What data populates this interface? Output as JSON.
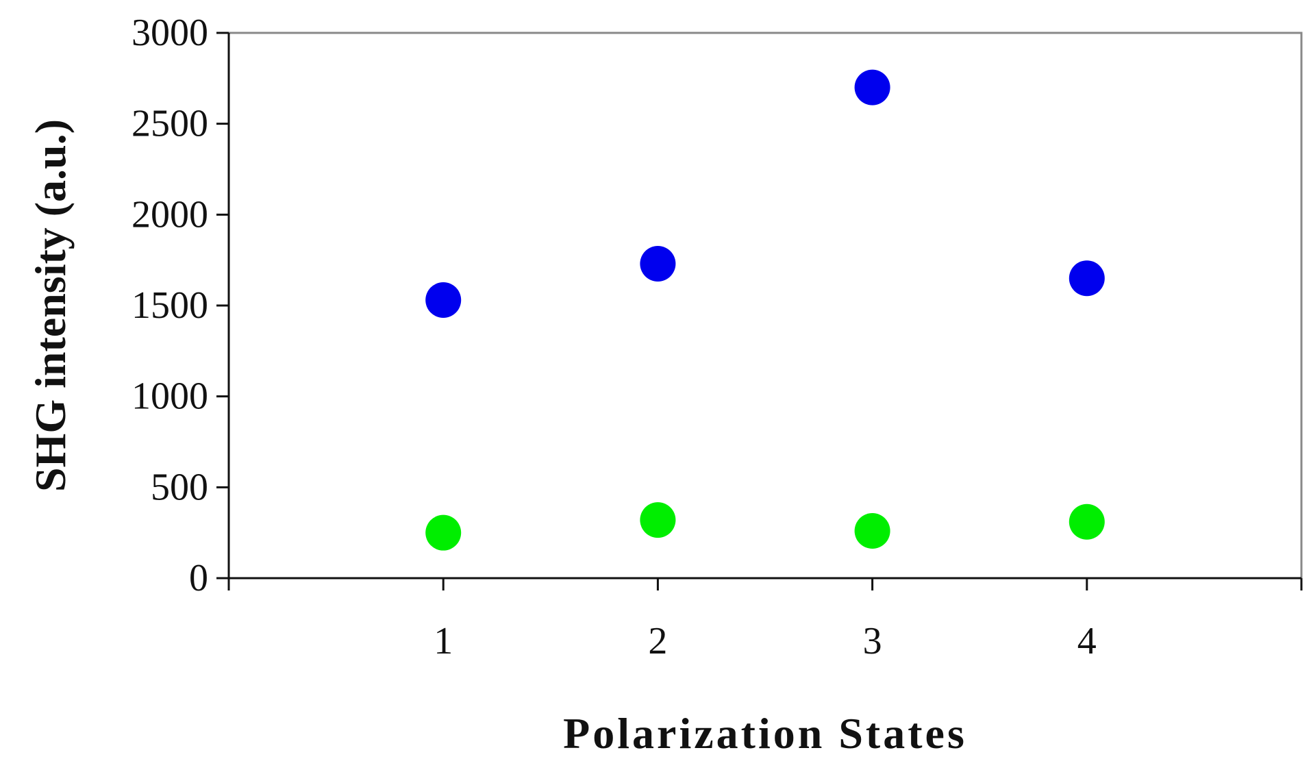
{
  "chart_data": {
    "type": "scatter",
    "title": "",
    "xlabel": "Polarization States",
    "ylabel": "SHG intensity (a.u.)",
    "xlim": [
      0,
      5
    ],
    "ylim": [
      0,
      3000
    ],
    "x_ticks": [
      1,
      2,
      3,
      4
    ],
    "y_ticks": [
      0,
      500,
      1000,
      1500,
      2000,
      2500,
      3000
    ],
    "grid": false,
    "legend": "none",
    "series": [
      {
        "color": "#0000ee",
        "points": [
          {
            "x": 1,
            "y": 1530
          },
          {
            "x": 2,
            "y": 1730
          },
          {
            "x": 3,
            "y": 2700
          },
          {
            "x": 4,
            "y": 1650
          }
        ]
      },
      {
        "color": "#00ee00",
        "points": [
          {
            "x": 1,
            "y": 250
          },
          {
            "x": 2,
            "y": 320
          },
          {
            "x": 3,
            "y": 260
          },
          {
            "x": 4,
            "y": 310
          }
        ]
      }
    ]
  }
}
